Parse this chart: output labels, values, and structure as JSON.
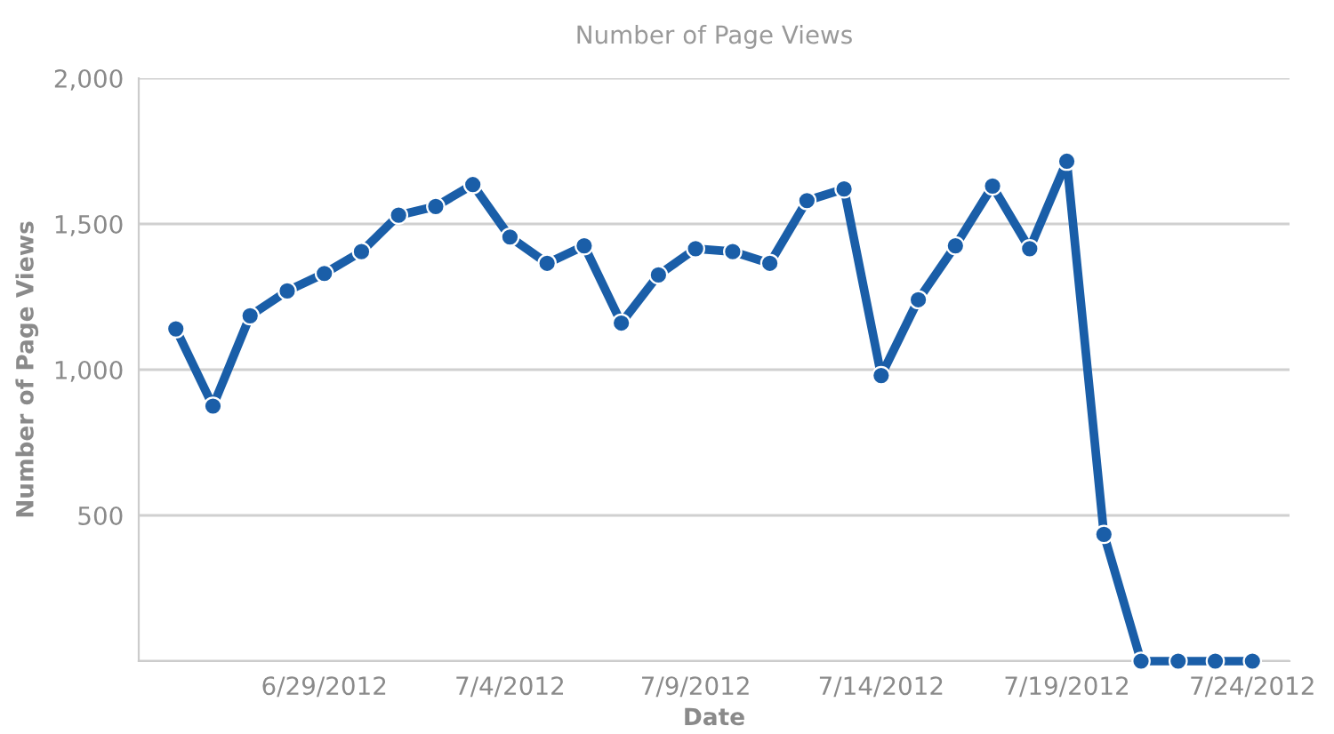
{
  "chart_data": {
    "type": "line",
    "title": "Number of Page Views",
    "xlabel": "Date",
    "ylabel": "Number of Page Views",
    "x": [
      "2012-06-25",
      "2012-06-26",
      "2012-06-27",
      "2012-06-28",
      "2012-06-29",
      "2012-06-30",
      "2012-07-01",
      "2012-07-02",
      "2012-07-03",
      "2012-07-04",
      "2012-07-05",
      "2012-07-06",
      "2012-07-07",
      "2012-07-08",
      "2012-07-09",
      "2012-07-10",
      "2012-07-11",
      "2012-07-12",
      "2012-07-13",
      "2012-07-14",
      "2012-07-15",
      "2012-07-16",
      "2012-07-17",
      "2012-07-18",
      "2012-07-19",
      "2012-07-20",
      "2012-07-21",
      "2012-07-22",
      "2012-07-23",
      "2012-07-24"
    ],
    "series": [
      {
        "color": "#1a5ea8",
        "values": [
          1140,
          875,
          1185,
          1270,
          1330,
          1405,
          1530,
          1560,
          1635,
          1455,
          1365,
          1425,
          1160,
          1325,
          1415,
          1405,
          1365,
          1580,
          1620,
          980,
          1240,
          1425,
          1630,
          1415,
          1715,
          435,
          0,
          0,
          0,
          0
        ]
      }
    ],
    "xlim": [
      "2012-06-24",
      "2012-07-25"
    ],
    "xticks": [
      {
        "value": "2012-06-29",
        "label": "6/29/2012"
      },
      {
        "value": "2012-07-04",
        "label": "7/4/2012"
      },
      {
        "value": "2012-07-09",
        "label": "7/9/2012"
      },
      {
        "value": "2012-07-14",
        "label": "7/14/2012"
      },
      {
        "value": "2012-07-19",
        "label": "7/19/2012"
      },
      {
        "value": "2012-07-24",
        "label": "7/24/2012"
      }
    ],
    "ylim": [
      0,
      2000
    ],
    "yticks": [
      {
        "value": 0,
        "label": null
      },
      {
        "value": 500,
        "label": "500"
      },
      {
        "value": 1000,
        "label": "1,000"
      },
      {
        "value": 1500,
        "label": "1,500"
      },
      {
        "value": 2000,
        "label": "2,000"
      }
    ],
    "grid": "y",
    "marker": "circle",
    "line_style": "solid"
  }
}
